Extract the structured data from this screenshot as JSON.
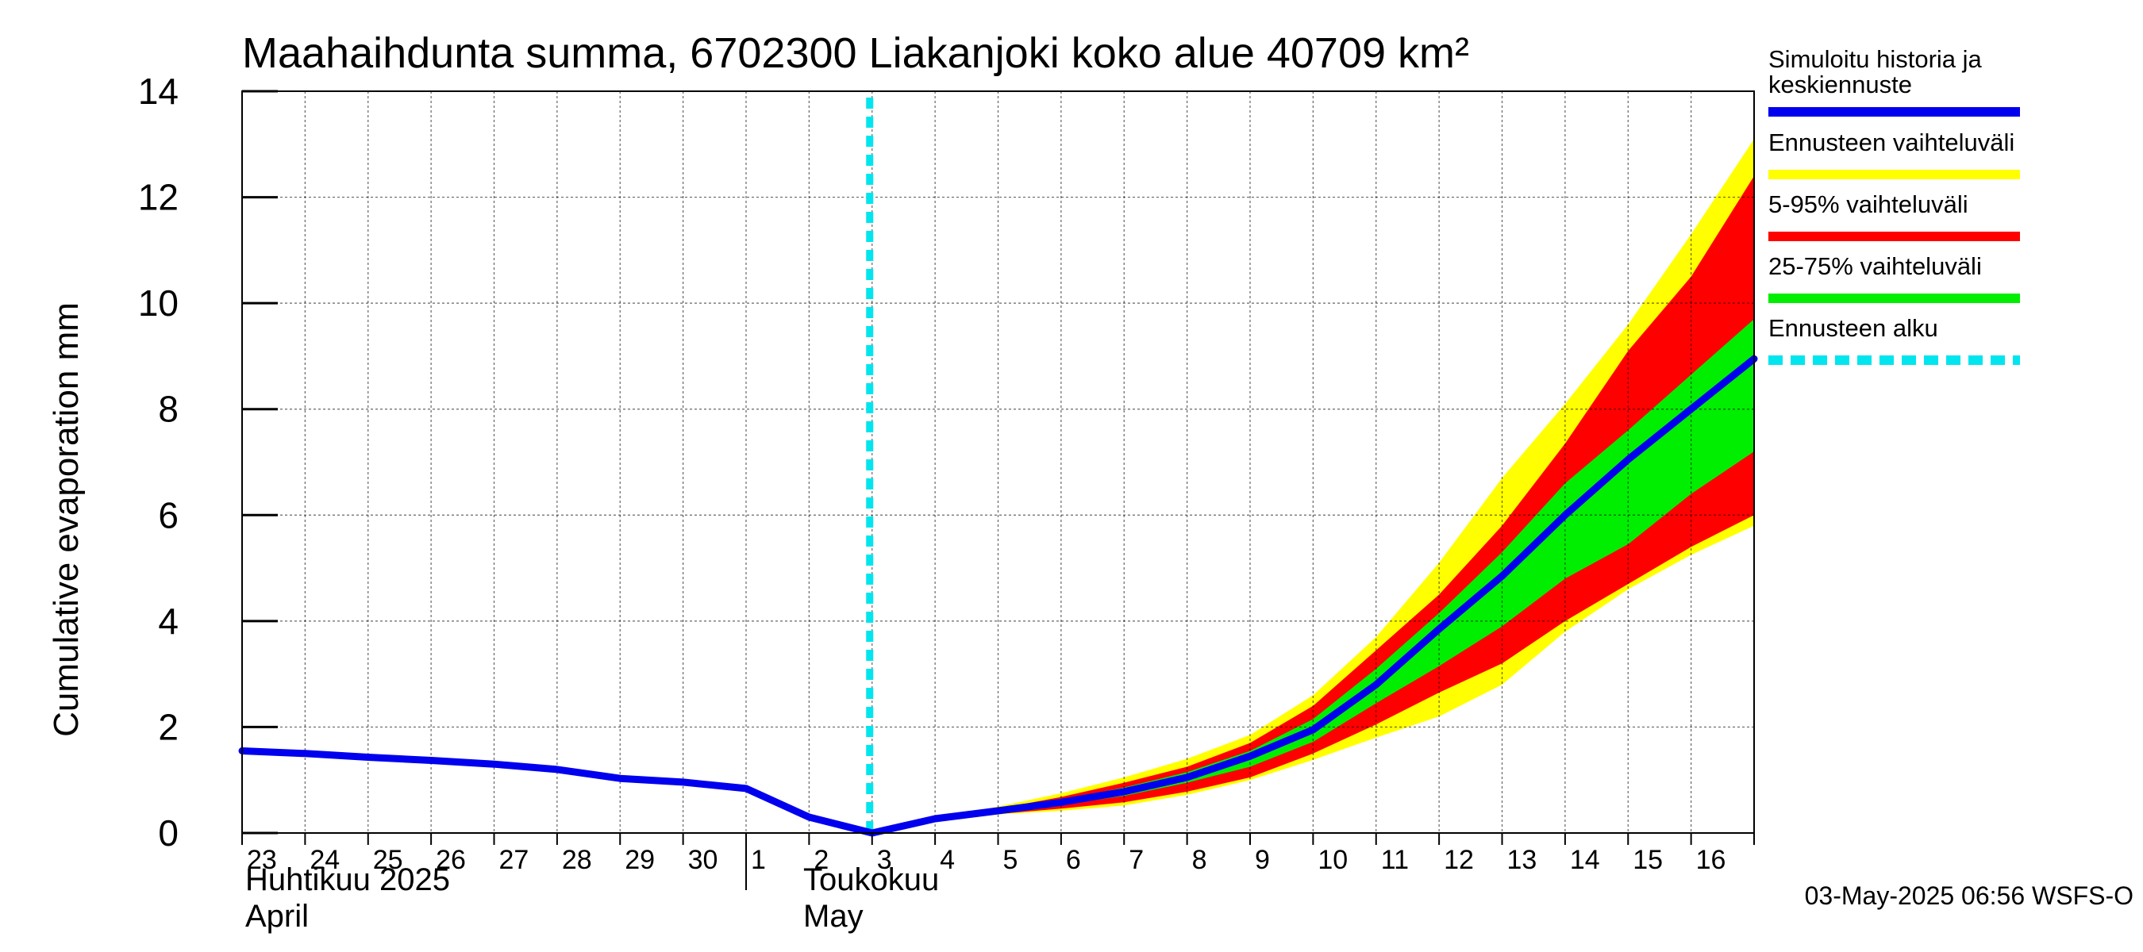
{
  "chart_data": {
    "type": "area",
    "title": "Maahaihdunta summa, 6702300 Liakanjoki koko alue 40709 km²",
    "ylabel": "Cumulative evaporation   mm",
    "ylim": [
      0,
      14
    ],
    "yticks": [
      0,
      2,
      4,
      6,
      8,
      10,
      12,
      14
    ],
    "grid": true,
    "legend_position": "right",
    "x_start": "2025-04-23",
    "x_end": "2025-05-17",
    "x_tick_labels": [
      "23",
      "24",
      "25",
      "26",
      "27",
      "28",
      "29",
      "30",
      "1",
      "2",
      "3",
      "4",
      "5",
      "6",
      "7",
      "8",
      "9",
      "10",
      "11",
      "12",
      "13",
      "14",
      "15",
      "16"
    ],
    "month_labels": [
      {
        "line1": "Huhtikuu  2025",
        "line2": "April"
      },
      {
        "line1": "Toukokuu",
        "line2": "May"
      }
    ],
    "forecast_start": "2025-05-03",
    "series": [
      {
        "name": "Simuloitu historia ja keskiennuste",
        "color": "#0000ee",
        "x": [
          "2025-04-23",
          "2025-04-24",
          "2025-04-25",
          "2025-04-26",
          "2025-04-27",
          "2025-04-28",
          "2025-04-29",
          "2025-04-30",
          "2025-05-01",
          "2025-05-02",
          "2025-05-03",
          "2025-05-04",
          "2025-05-05",
          "2025-05-06",
          "2025-05-07",
          "2025-05-08",
          "2025-05-09",
          "2025-05-10",
          "2025-05-11",
          "2025-05-12",
          "2025-05-13",
          "2025-05-14",
          "2025-05-15",
          "2025-05-16",
          "2025-05-17"
        ],
        "values": [
          1.55,
          1.5,
          1.43,
          1.37,
          1.3,
          1.2,
          1.03,
          0.96,
          0.84,
          0.3,
          0.0,
          0.27,
          0.42,
          0.58,
          0.78,
          1.05,
          1.45,
          1.95,
          2.8,
          3.85,
          4.85,
          6.0,
          7.05,
          8.0,
          8.95
        ]
      }
    ],
    "bands": [
      {
        "name": "Ennusteen vaihteluväli",
        "color": "#ffff00",
        "x": [
          "2025-05-04",
          "2025-05-05",
          "2025-05-06",
          "2025-05-07",
          "2025-05-08",
          "2025-05-09",
          "2025-05-10",
          "2025-05-11",
          "2025-05-12",
          "2025-05-13",
          "2025-05-14",
          "2025-05-15",
          "2025-05-16",
          "2025-05-17"
        ],
        "lower": [
          0.27,
          0.35,
          0.42,
          0.52,
          0.72,
          1.0,
          1.38,
          1.8,
          2.2,
          2.8,
          3.8,
          4.6,
          5.25,
          5.8
        ],
        "upper": [
          0.27,
          0.5,
          0.75,
          1.05,
          1.4,
          1.85,
          2.6,
          3.7,
          5.1,
          6.7,
          8.1,
          9.6,
          11.3,
          13.1
        ]
      },
      {
        "name": "5-95% vaihteluväli",
        "color": "#ff0000",
        "x": [
          "2025-05-04",
          "2025-05-05",
          "2025-05-06",
          "2025-05-07",
          "2025-05-08",
          "2025-05-09",
          "2025-05-10",
          "2025-05-11",
          "2025-05-12",
          "2025-05-13",
          "2025-05-14",
          "2025-05-15",
          "2025-05-16",
          "2025-05-17"
        ],
        "lower": [
          0.27,
          0.36,
          0.46,
          0.58,
          0.78,
          1.05,
          1.5,
          2.05,
          2.65,
          3.2,
          4.0,
          4.7,
          5.4,
          6.0
        ],
        "upper": [
          0.27,
          0.46,
          0.68,
          0.95,
          1.25,
          1.7,
          2.4,
          3.45,
          4.5,
          5.8,
          7.35,
          9.1,
          10.5,
          12.4
        ]
      },
      {
        "name": "25-75% vaihteluväli",
        "color": "#00ee00",
        "x": [
          "2025-05-04",
          "2025-05-05",
          "2025-05-06",
          "2025-05-07",
          "2025-05-08",
          "2025-05-09",
          "2025-05-10",
          "2025-05-11",
          "2025-05-12",
          "2025-05-13",
          "2025-05-14",
          "2025-05-15",
          "2025-05-16",
          "2025-05-17"
        ],
        "lower": [
          0.27,
          0.39,
          0.53,
          0.7,
          0.95,
          1.25,
          1.72,
          2.45,
          3.15,
          3.9,
          4.8,
          5.45,
          6.4,
          7.2
        ],
        "upper": [
          0.27,
          0.43,
          0.62,
          0.86,
          1.15,
          1.55,
          2.15,
          3.1,
          4.15,
          5.3,
          6.6,
          7.6,
          8.65,
          9.7
        ]
      }
    ],
    "legend": [
      {
        "label": "Simuloitu historia ja keskiennuste",
        "color": "#0000ee",
        "style": "solid"
      },
      {
        "label": "Ennusteen vaihteluväli",
        "color": "#ffff00",
        "style": "solid"
      },
      {
        "label": "5-95% vaihteluväli",
        "color": "#ff0000",
        "style": "solid"
      },
      {
        "label": "25-75% vaihteluväli",
        "color": "#00ee00",
        "style": "solid"
      },
      {
        "label": "Ennusteen alku",
        "color": "#00e5ee",
        "style": "dashed"
      }
    ],
    "footer": "03-May-2025 06:56 WSFS-O"
  }
}
